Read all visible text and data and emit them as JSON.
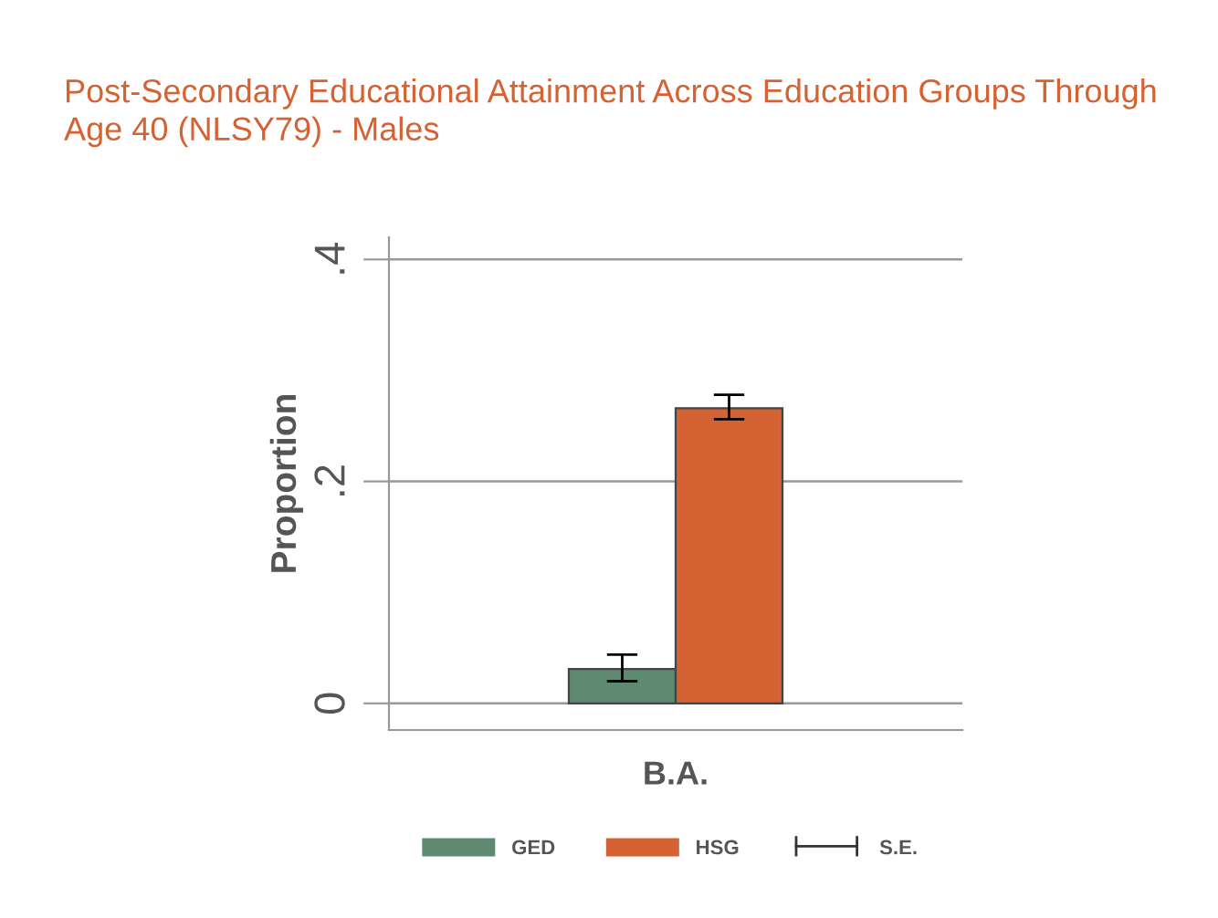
{
  "chart_data": {
    "type": "bar",
    "title": "Post-Secondary Educational Attainment Across Education Groups Through Age 40 (NLSY79) - Males",
    "ylabel": "Proportion",
    "categories": [
      "B.A."
    ],
    "series": [
      {
        "name": "GED",
        "color": "#5e8a72",
        "values": [
          0.031
        ],
        "errors": [
          [
            0.02,
            0.044
          ]
        ]
      },
      {
        "name": "HSG",
        "color": "#d46232",
        "values": [
          0.266
        ],
        "errors": [
          [
            0.256,
            0.278
          ]
        ]
      }
    ],
    "annotations": [
      "S.E."
    ],
    "ylim": [
      -0.024,
      0.42
    ],
    "yticks": [
      {
        "value": 0,
        "label": "0"
      },
      {
        "value": 0.2,
        "label": ".2"
      },
      {
        "value": 0.4,
        "label": ".4"
      }
    ],
    "grid": "y",
    "legend": "bottom"
  }
}
